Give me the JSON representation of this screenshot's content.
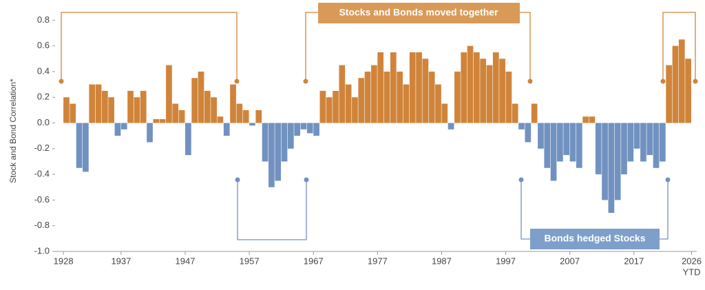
{
  "chart_data": {
    "type": "bar",
    "y_label": "Stock and Bond Correlation*",
    "annotations": {
      "together": "Stocks and Bonds moved together",
      "hedged": "Bonds hedged Stocks",
      "ytd": "YTD"
    },
    "colors": {
      "positive": "#d0843a",
      "negative": "#7192c0"
    },
    "xlim": [
      1926.7,
      2026.8
    ],
    "ylim": [
      -1,
      0.85
    ],
    "xticks": [
      1928,
      1937,
      1947,
      1957,
      1967,
      1977,
      1987,
      1997,
      2007,
      2017,
      2026
    ],
    "yticks": [
      0.8,
      0.6,
      0.4,
      0.2,
      {
        "value": 0,
        "label": "0.0"
      },
      -0.2,
      -0.4,
      -0.6,
      -0.8,
      {
        "value": -1,
        "label": "-1.0"
      }
    ],
    "x": [
      1928,
      1929,
      1930,
      1931,
      1932,
      1933,
      1934,
      1935,
      1936,
      1937,
      1938,
      1939,
      1940,
      1941,
      1942,
      1943,
      1944,
      1945,
      1946,
      1947,
      1948,
      1949,
      1950,
      1951,
      1952,
      1953,
      1954,
      1955,
      1956,
      1957,
      1958,
      1959,
      1960,
      1961,
      1962,
      1963,
      1964,
      1965,
      1966,
      1967,
      1968,
      1969,
      1970,
      1971,
      1972,
      1973,
      1974,
      1975,
      1976,
      1977,
      1978,
      1979,
      1980,
      1981,
      1982,
      1983,
      1984,
      1985,
      1986,
      1987,
      1988,
      1989,
      1990,
      1991,
      1992,
      1993,
      1994,
      1995,
      1996,
      1997,
      1998,
      1999,
      2000,
      2001,
      2002,
      2003,
      2004,
      2005,
      2006,
      2007,
      2008,
      2009,
      2010,
      2011,
      2012,
      2013,
      2014,
      2015,
      2016,
      2017,
      2018,
      2019,
      2020,
      2021,
      2022,
      2023,
      2024,
      2025
    ],
    "values": [
      0.2,
      0.15,
      -0.35,
      -0.38,
      0.3,
      0.3,
      0.25,
      0.2,
      -0.1,
      -0.05,
      0.25,
      0.2,
      0.25,
      -0.15,
      0.03,
      0.03,
      0.45,
      0.15,
      0.1,
      -0.25,
      0.35,
      0.4,
      0.25,
      0.2,
      0.05,
      -0.1,
      0.3,
      0.15,
      0.1,
      -0.02,
      0.1,
      -0.3,
      -0.5,
      -0.45,
      -0.3,
      -0.2,
      -0.1,
      -0.05,
      -0.08,
      -0.1,
      0.25,
      0.2,
      0.25,
      0.45,
      0.3,
      0.2,
      0.35,
      0.4,
      0.45,
      0.55,
      0.4,
      0.55,
      0.4,
      0.3,
      0.55,
      0.55,
      0.5,
      0.4,
      0.3,
      0.15,
      -0.05,
      0.4,
      0.55,
      0.6,
      0.55,
      0.5,
      0.45,
      0.55,
      0.5,
      0.4,
      0.15,
      -0.05,
      -0.15,
      0.15,
      -0.2,
      -0.35,
      -0.45,
      -0.3,
      -0.25,
      -0.3,
      -0.35,
      0.05,
      0.05,
      -0.4,
      -0.6,
      -0.7,
      -0.6,
      -0.4,
      -0.3,
      -0.2,
      -0.3,
      -0.25,
      -0.35,
      -0.3,
      0.45,
      0.6,
      0.65,
      0.5
    ]
  }
}
